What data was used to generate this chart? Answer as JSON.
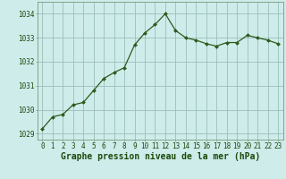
{
  "x": [
    0,
    1,
    2,
    3,
    4,
    5,
    6,
    7,
    8,
    9,
    10,
    11,
    12,
    13,
    14,
    15,
    16,
    17,
    18,
    19,
    20,
    21,
    22,
    23
  ],
  "y": [
    1029.2,
    1029.7,
    1029.8,
    1030.2,
    1030.3,
    1030.8,
    1031.3,
    1031.55,
    1031.75,
    1032.7,
    1033.2,
    1033.55,
    1034.0,
    1033.3,
    1033.0,
    1032.9,
    1032.75,
    1032.65,
    1032.8,
    1032.8,
    1033.1,
    1033.0,
    1032.9,
    1032.75
  ],
  "bg_color": "#ceecea",
  "line_color": "#2d5a1b",
  "marker_color": "#2d5a1b",
  "grid_color": "#9bbfbb",
  "title": "Graphe pression niveau de la mer (hPa)",
  "ylim_min": 1028.75,
  "ylim_max": 1034.5,
  "yticks": [
    1029,
    1030,
    1031,
    1032,
    1033,
    1034
  ],
  "xticks": [
    0,
    1,
    2,
    3,
    4,
    5,
    6,
    7,
    8,
    9,
    10,
    11,
    12,
    13,
    14,
    15,
    16,
    17,
    18,
    19,
    20,
    21,
    22,
    23
  ],
  "title_fontsize": 7.0,
  "tick_fontsize": 5.5,
  "title_color": "#1a4a0a",
  "tick_color": "#1a4a0a",
  "spine_color": "#7a9a7a"
}
